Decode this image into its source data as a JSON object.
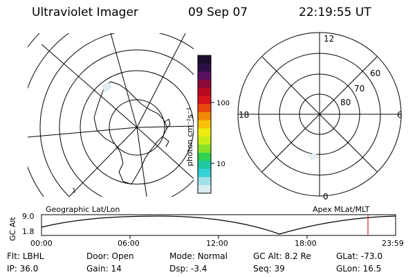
{
  "header": {
    "instrument": "Ultraviolet Imager",
    "date": "09 Sep 07",
    "time": "22:19:55 UT"
  },
  "geo_map": {
    "caption": "Geographic Lat/Lon",
    "coast_label": "1"
  },
  "colorbar": {
    "unit": "photon cm⁻²s⁻¹",
    "tick_100": "100",
    "tick_10": "10",
    "colors": [
      "#1a0f2a",
      "#2c1044",
      "#5a1060",
      "#8a0a3a",
      "#b80a22",
      "#d8141c",
      "#e8480e",
      "#f08a05",
      "#f8c208",
      "#f0ec10",
      "#c8ee18",
      "#88e028",
      "#30d050",
      "#20c8a0",
      "#38d0d8",
      "#a0e0e8",
      "#d8ecf0"
    ]
  },
  "polar_map": {
    "caption": "Apex MLat/MLT",
    "mlt_labels": {
      "top": "12",
      "left": "18",
      "right": "6",
      "bottom": "0"
    },
    "lat_labels": [
      "60",
      "70",
      "80"
    ]
  },
  "timeline": {
    "axis_label": "GC Alt",
    "y_ticks": [
      "9.0",
      "1.8"
    ],
    "x_ticks": [
      "00:00",
      "06:00",
      "12:00",
      "18:00",
      "23:59"
    ],
    "current_time": "22:19:55",
    "marker_color": "#e02020"
  },
  "info": {
    "filter": {
      "label": "Flt:",
      "value": "LBHL"
    },
    "ip": {
      "label": "IP:",
      "value": "36.0"
    },
    "door": {
      "label": "Door:",
      "value": "Open"
    },
    "gain": {
      "label": "Gain:",
      "value": "14"
    },
    "mode": {
      "label": "Mode:",
      "value": "Normal"
    },
    "dsp": {
      "label": "Dsp:",
      "value": "-3.4"
    },
    "gc_alt": {
      "label": "GC Alt:",
      "value": "8.2 Re"
    },
    "seq": {
      "label": "Seq:",
      "value": "39"
    },
    "glat": {
      "label": "GLat:",
      "value": "-73.0"
    },
    "glon": {
      "label": "GLon:",
      "value": "16.5"
    }
  }
}
